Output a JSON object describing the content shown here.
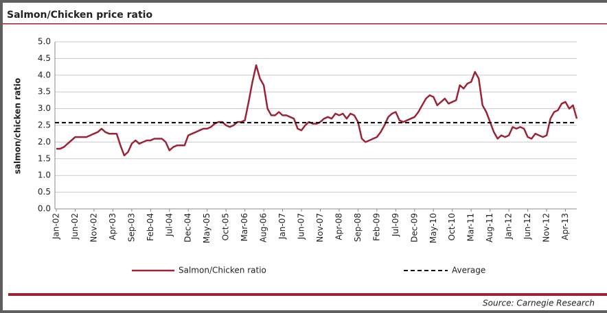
{
  "chart_data": {
    "type": "line",
    "title": "Salmon/Chicken price ratio",
    "y_label": "salmon/chicken ratio",
    "source": "Source: Carnegie Research",
    "categories": [
      "Jan-02",
      null,
      null,
      null,
      null,
      "Jun-02",
      null,
      null,
      null,
      null,
      "Nov-02",
      null,
      null,
      null,
      null,
      "Apr-03",
      null,
      null,
      null,
      null,
      "Sep-03",
      null,
      null,
      null,
      null,
      "Feb-04",
      null,
      null,
      null,
      null,
      "Jul-04",
      null,
      null,
      null,
      null,
      "Dec-04",
      null,
      null,
      null,
      null,
      "May-05",
      null,
      null,
      null,
      null,
      "Oct-05",
      null,
      null,
      null,
      null,
      "Mar-06",
      null,
      null,
      null,
      null,
      "Aug-06",
      null,
      null,
      null,
      null,
      "Jan-07",
      null,
      null,
      null,
      null,
      "Jun-07",
      null,
      null,
      null,
      null,
      "Nov-07",
      null,
      null,
      null,
      null,
      "Apr-08",
      null,
      null,
      null,
      null,
      "Sep-08",
      null,
      null,
      null,
      null,
      "Feb-09",
      null,
      null,
      null,
      null,
      "Jul-09",
      null,
      null,
      null,
      null,
      "Dec-09",
      null,
      null,
      null,
      null,
      "May-10",
      null,
      null,
      null,
      null,
      "Oct-10",
      null,
      null,
      null,
      null,
      "Mar-11",
      null,
      null,
      null,
      null,
      "Aug-11",
      null,
      null,
      null,
      null,
      "Jan-12",
      null,
      null,
      null,
      null,
      "Jun-12",
      null,
      null,
      null,
      null,
      "Nov-12",
      null,
      null,
      null,
      null,
      "Apr-13",
      null,
      null,
      null
    ],
    "series": [
      {
        "name": "Salmon/Chicken ratio",
        "color": "#9b2335",
        "values": [
          1.8,
          1.8,
          1.85,
          1.95,
          2.05,
          2.15,
          2.15,
          2.15,
          2.15,
          2.2,
          2.25,
          2.3,
          2.4,
          2.3,
          2.25,
          2.25,
          2.25,
          1.9,
          1.6,
          1.7,
          1.95,
          2.05,
          1.95,
          2.0,
          2.05,
          2.05,
          2.1,
          2.1,
          2.1,
          2.0,
          1.75,
          1.85,
          1.9,
          1.9,
          1.9,
          2.2,
          2.25,
          2.3,
          2.35,
          2.4,
          2.4,
          2.45,
          2.55,
          2.6,
          2.6,
          2.5,
          2.45,
          2.5,
          2.6,
          2.6,
          2.65,
          3.2,
          3.8,
          4.3,
          3.9,
          3.7,
          3.0,
          2.8,
          2.8,
          2.9,
          2.8,
          2.8,
          2.75,
          2.7,
          2.4,
          2.35,
          2.5,
          2.6,
          2.55,
          2.55,
          2.6,
          2.7,
          2.75,
          2.7,
          2.85,
          2.8,
          2.85,
          2.7,
          2.85,
          2.8,
          2.6,
          2.1,
          2.0,
          2.05,
          2.1,
          2.15,
          2.3,
          2.5,
          2.75,
          2.85,
          2.9,
          2.65,
          2.6,
          2.65,
          2.7,
          2.75,
          2.9,
          3.1,
          3.3,
          3.4,
          3.35,
          3.1,
          3.2,
          3.3,
          3.15,
          3.2,
          3.25,
          3.7,
          3.6,
          3.75,
          3.8,
          4.1,
          3.9,
          3.1,
          2.9,
          2.6,
          2.3,
          2.1,
          2.2,
          2.15,
          2.2,
          2.45,
          2.4,
          2.45,
          2.4,
          2.15,
          2.1,
          2.25,
          2.2,
          2.15,
          2.2,
          2.7,
          2.9,
          2.95,
          3.15,
          3.2,
          3.0,
          3.1,
          2.7
        ]
      }
    ],
    "reference_line": {
      "name": "Average",
      "value": 2.58,
      "color": "#000000"
    },
    "ylim": [
      0,
      5
    ],
    "yticks": [
      {
        "value": 0,
        "label": "0.0"
      },
      0.5,
      {
        "value": 1,
        "label": "1.0"
      },
      1.5,
      {
        "value": 2,
        "label": "2.0"
      },
      2.5,
      {
        "value": 3,
        "label": "3.0"
      },
      3.5,
      {
        "value": 4,
        "label": "4.0"
      },
      4.5,
      {
        "value": 5,
        "label": "5.0"
      }
    ],
    "grid": true
  }
}
